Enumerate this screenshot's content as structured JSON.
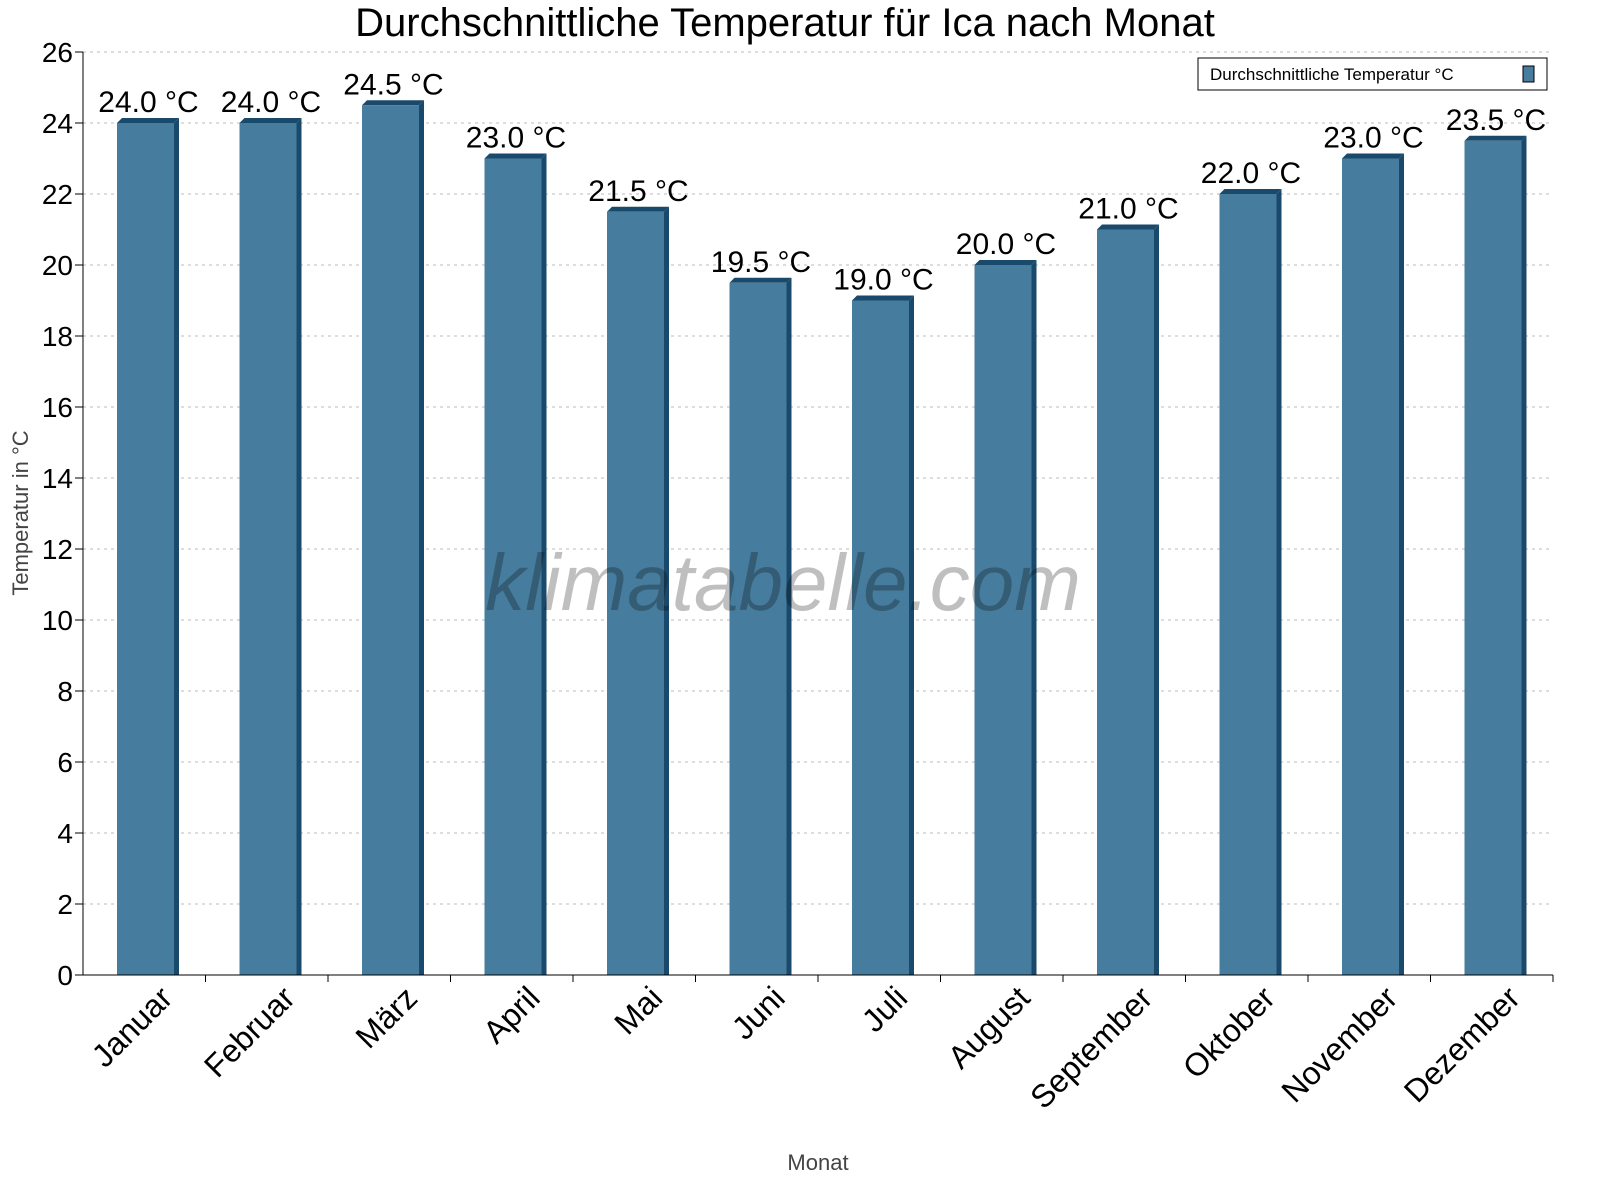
{
  "chart_data": {
    "type": "bar",
    "title": "Durchschnittliche Temperatur für Ica nach Monat",
    "xlabel": "Monat",
    "ylabel": "Temperatur in °C",
    "ylim": [
      0,
      26
    ],
    "yticks": [
      0,
      2,
      4,
      6,
      8,
      10,
      12,
      14,
      16,
      18,
      20,
      22,
      24,
      26
    ],
    "grid": true,
    "legend_position": "top-right",
    "categories": [
      "Januar",
      "Februar",
      "März",
      "April",
      "Mai",
      "Juni",
      "Juli",
      "August",
      "September",
      "Oktober",
      "November",
      "Dezember"
    ],
    "series": [
      {
        "name": "Durchschnittliche Temperatur °C",
        "values": [
          24.0,
          24.0,
          24.5,
          23.0,
          21.5,
          19.5,
          19.0,
          20.0,
          21.0,
          22.0,
          23.0,
          23.5
        ],
        "data_labels": [
          "24.0 °C",
          "24.0 °C",
          "24.5 °C",
          "23.0 °C",
          "21.5 °C",
          "19.5 °C",
          "19.0 °C",
          "20.0 °C",
          "21.0 °C",
          "22.0 °C",
          "23.0 °C",
          "23.5 °C"
        ],
        "color": "#467c9d",
        "edge_color": "#1a4a6b"
      }
    ],
    "watermark": "klimatabelle.com"
  }
}
